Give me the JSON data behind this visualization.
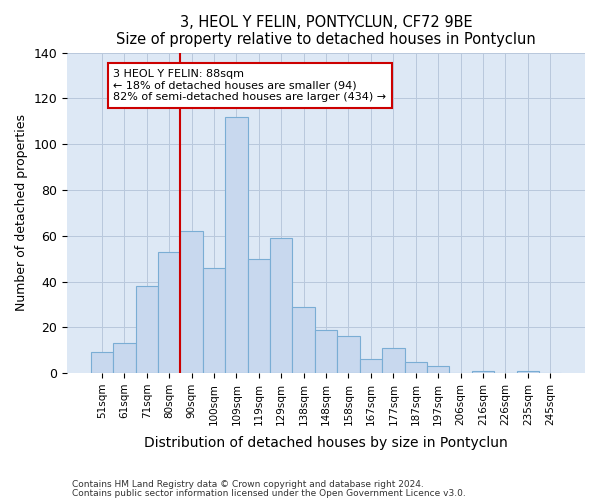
{
  "title": "3, HEOL Y FELIN, PONTYCLUN, CF72 9BE",
  "subtitle": "Size of property relative to detached houses in Pontyclun",
  "xlabel": "Distribution of detached houses by size in Pontyclun",
  "ylabel": "Number of detached properties",
  "bar_labels": [
    "51sqm",
    "61sqm",
    "71sqm",
    "80sqm",
    "90sqm",
    "100sqm",
    "109sqm",
    "119sqm",
    "129sqm",
    "138sqm",
    "148sqm",
    "158sqm",
    "167sqm",
    "177sqm",
    "187sqm",
    "197sqm",
    "206sqm",
    "216sqm",
    "226sqm",
    "235sqm",
    "245sqm"
  ],
  "bar_values": [
    9,
    13,
    38,
    53,
    62,
    46,
    112,
    50,
    59,
    29,
    19,
    16,
    6,
    11,
    5,
    3,
    0,
    1,
    0,
    1,
    0
  ],
  "bar_color": "#c8d8ee",
  "bar_edge_color": "#7aadd4",
  "vline_x_index": 4,
  "vline_color": "#cc0000",
  "annotation_line1": "3 HEOL Y FELIN: 88sqm",
  "annotation_line2": "← 18% of detached houses are smaller (94)",
  "annotation_line3": "82% of semi-detached houses are larger (434) →",
  "annotation_box_color": "white",
  "annotation_box_edge_color": "#cc0000",
  "ylim": [
    0,
    140
  ],
  "yticks": [
    0,
    20,
    40,
    60,
    80,
    100,
    120,
    140
  ],
  "footer_line1": "Contains HM Land Registry data © Crown copyright and database right 2024.",
  "footer_line2": "Contains public sector information licensed under the Open Government Licence v3.0.",
  "figure_background_color": "#ffffff",
  "plot_background_color": "#dde8f5"
}
